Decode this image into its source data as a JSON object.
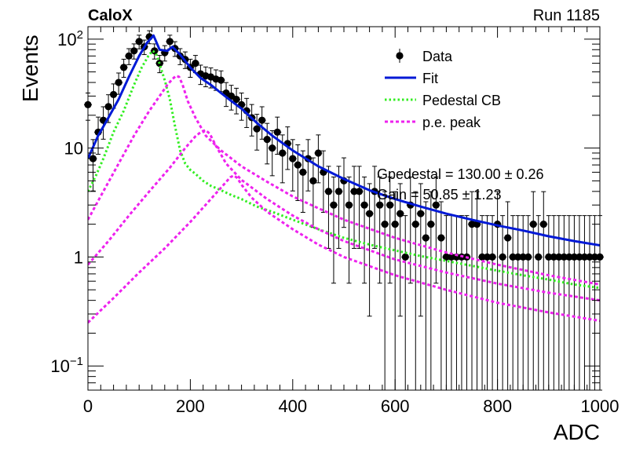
{
  "header": {
    "left_label": "CaloX",
    "right_label": "Run 1185"
  },
  "chart_data": {
    "type": "scatter",
    "title": "",
    "xlabel": "ADC",
    "ylabel": "Events",
    "xlim": [
      0,
      1000
    ],
    "ylim": [
      0.06,
      130
    ],
    "yscale": "log",
    "grid": false,
    "legend_position": "top-right",
    "x_ticks": [
      0,
      200,
      400,
      600,
      800,
      1000
    ],
    "y_ticks": [
      {
        "value": 0.1,
        "mantissa": "10",
        "exp": "−1"
      },
      {
        "value": 1,
        "mantissa": "1",
        "exp": ""
      },
      {
        "value": 10,
        "mantissa": "10",
        "exp": ""
      },
      {
        "value": 100,
        "mantissa": "10",
        "exp": "2"
      }
    ],
    "legend": [
      {
        "label": "Data",
        "style": "marker",
        "color": "#000000"
      },
      {
        "label": "Fit",
        "style": "line",
        "color": "#0019d6"
      },
      {
        "label": "Pedestal CB",
        "style": "dotted",
        "color": "#33ee22"
      },
      {
        "label": "p.e. peak",
        "style": "dashed",
        "color": "#ee22ee"
      }
    ],
    "annotations": [
      {
        "text": "Gpedestal = 130.00 ± 0.26"
      },
      {
        "text": "Gain = 50.85 ± 1.23"
      }
    ],
    "data_points": {
      "x": [
        0,
        10,
        20,
        30,
        40,
        50,
        60,
        70,
        80,
        90,
        100,
        110,
        120,
        130,
        140,
        150,
        160,
        170,
        180,
        190,
        200,
        210,
        220,
        230,
        240,
        250,
        260,
        270,
        280,
        290,
        300,
        310,
        320,
        330,
        340,
        350,
        360,
        370,
        380,
        390,
        400,
        410,
        420,
        430,
        440,
        450,
        460,
        470,
        480,
        490,
        500,
        510,
        520,
        530,
        540,
        550,
        560,
        570,
        580,
        590,
        600,
        610,
        620,
        630,
        640,
        650,
        660,
        670,
        680,
        690,
        700,
        710,
        720,
        730,
        740,
        750,
        760,
        770,
        780,
        790,
        800,
        810,
        820,
        830,
        840,
        850,
        860,
        870,
        880,
        890,
        900,
        910,
        920,
        930,
        940,
        950,
        960,
        970,
        980,
        990,
        1000
      ],
      "y": [
        25,
        8,
        14,
        18,
        24,
        31,
        40,
        55,
        70,
        78,
        95,
        85,
        105,
        78,
        60,
        75,
        95,
        82,
        70,
        65,
        55,
        60,
        48,
        46,
        45,
        43,
        42,
        32,
        30,
        28,
        25,
        22,
        19,
        15,
        18,
        12,
        10,
        14,
        9,
        11,
        8,
        7,
        6,
        8,
        5,
        9,
        6,
        4,
        3,
        4,
        5,
        3,
        4,
        4,
        3,
        2.5,
        4,
        3,
        2,
        3,
        2,
        2.5,
        1,
        3,
        2,
        2.5,
        1.5,
        2,
        3,
        1.5,
        1,
        1,
        1,
        1,
        1,
        2,
        2,
        1,
        1,
        1,
        2,
        1,
        1.5,
        1,
        1,
        1,
        1,
        2,
        1,
        2,
        1,
        1,
        1,
        1,
        1,
        1,
        1,
        1,
        1,
        1,
        1
      ],
      "err_scale": 1.4
    },
    "series": [
      {
        "name": "Fit",
        "style": "solid",
        "color": "#0019d6",
        "width": 3,
        "x": [
          0,
          20,
          40,
          60,
          80,
          100,
          115,
          128,
          140,
          155,
          165,
          180,
          200,
          220,
          240,
          260,
          280,
          300,
          330,
          360,
          400,
          450,
          500,
          550,
          600,
          650,
          700,
          750,
          800,
          850,
          900,
          950,
          1000
        ],
        "y": [
          8,
          13,
          19,
          28,
          45,
          70,
          92,
          108,
          80,
          78,
          85,
          72,
          55,
          44,
          38,
          32,
          27,
          23,
          17,
          13,
          9.5,
          6.8,
          5.2,
          4.1,
          3.4,
          2.9,
          2.5,
          2.2,
          1.95,
          1.75,
          1.55,
          1.4,
          1.28
        ]
      },
      {
        "name": "Pedestal CB",
        "style": "dotted",
        "color": "#33ee22",
        "width": 3,
        "x": [
          0,
          15,
          30,
          50,
          70,
          90,
          105,
          118,
          126,
          132,
          136,
          142,
          150,
          160,
          170,
          180,
          190,
          200,
          210,
          225,
          240,
          260,
          280,
          300,
          330,
          360,
          400,
          450,
          500,
          550,
          600,
          650,
          700,
          750,
          800,
          850,
          900,
          950,
          1000
        ],
        "y": [
          4,
          5.5,
          8,
          14,
          22,
          38,
          55,
          70,
          78,
          75,
          68,
          55,
          42,
          28,
          16,
          9.5,
          7.2,
          6.3,
          5.8,
          5.0,
          4.5,
          4.1,
          3.7,
          3.4,
          2.9,
          2.6,
          2.2,
          1.8,
          1.5,
          1.3,
          1.15,
          1.02,
          0.92,
          0.83,
          0.75,
          0.68,
          0.62,
          0.56,
          0.52
        ]
      },
      {
        "name": "p.e. peak",
        "style": "dashed",
        "color": "#ee22ee",
        "width": 3,
        "x": [
          0,
          30,
          60,
          90,
          120,
          140,
          155,
          165,
          172,
          178,
          185,
          195,
          210,
          230,
          260,
          300,
          350,
          400,
          450,
          500,
          600,
          700,
          800,
          900,
          1000
        ],
        "y": [
          2.2,
          4.0,
          7.2,
          13,
          22,
          30,
          38,
          43,
          46,
          45,
          38,
          27,
          19,
          13,
          9.5,
          6.8,
          4.9,
          3.6,
          2.8,
          2.2,
          1.5,
          1.1,
          0.85,
          0.68,
          0.56
        ]
      },
      {
        "name": "p.e. peak",
        "style": "dashed",
        "color": "#ee22ee",
        "width": 3,
        "x": [
          0,
          40,
          80,
          120,
          160,
          190,
          210,
          222,
          230,
          238,
          250,
          270,
          300,
          350,
          400,
          450,
          500,
          600,
          700,
          800,
          900,
          1000
        ],
        "y": [
          0.85,
          1.4,
          2.4,
          4.0,
          6.6,
          10,
          12.8,
          14.2,
          14.6,
          13.5,
          10.5,
          7.2,
          5.1,
          3.4,
          2.4,
          1.8,
          1.4,
          0.95,
          0.72,
          0.57,
          0.47,
          0.4
        ]
      },
      {
        "name": "p.e. peak",
        "style": "dashed",
        "color": "#ee22ee",
        "width": 3,
        "x": [
          0,
          50,
          100,
          150,
          200,
          240,
          265,
          278,
          285,
          292,
          300,
          320,
          350,
          400,
          450,
          500,
          600,
          700,
          800,
          900,
          1000
        ],
        "y": [
          0.25,
          0.42,
          0.72,
          1.2,
          2.1,
          3.4,
          4.6,
          5.4,
          5.6,
          5.3,
          4.6,
          3.5,
          2.6,
          1.8,
          1.3,
          1.0,
          0.68,
          0.5,
          0.38,
          0.31,
          0.26
        ]
      }
    ]
  },
  "colors": {
    "axis": "#000000",
    "data_marker": "#000000"
  }
}
